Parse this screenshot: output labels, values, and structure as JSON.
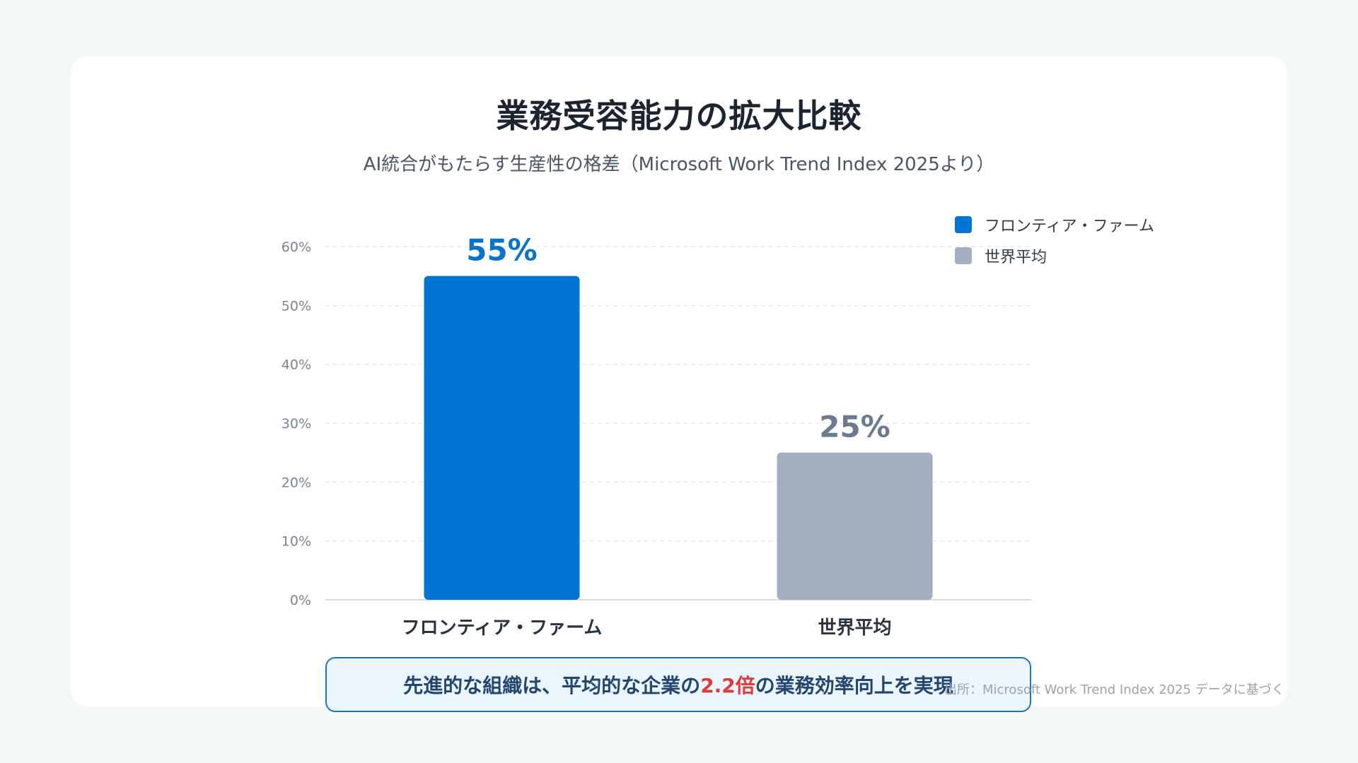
{
  "chart_data": {
    "type": "bar",
    "title": "業務受容能力の拡大比較",
    "subtitle": "AI統合がもたらす生産性の格差（Microsoft Work Trend Index 2025より）",
    "categories": [
      "フロンティア・ファーム",
      "世界平均"
    ],
    "values": [
      55,
      25
    ],
    "value_labels": [
      "55%",
      "25%"
    ],
    "colors": [
      "#0075d4",
      "#a3afc1"
    ],
    "label_colors": [
      "#0b72cc",
      "#6c7a8e"
    ],
    "ylim": [
      0,
      60
    ],
    "yticks": [
      0,
      10,
      20,
      30,
      40,
      50,
      60
    ],
    "ytick_labels": [
      "0%",
      "10%",
      "20%",
      "30%",
      "40%",
      "50%",
      "60%"
    ],
    "grid": true,
    "legend_position": "top-right",
    "legend": [
      {
        "label": "フロンティア・ファーム",
        "color": "#0075d4"
      },
      {
        "label": "世界平均",
        "color": "#a3afc1"
      }
    ]
  },
  "callout": {
    "before": "先進的な組織は、平均的な企業の",
    "highlight": "2.2倍",
    "after": "の業務効率向上を実現"
  },
  "source": "出所：Microsoft Work Trend Index 2025 データに基づく"
}
